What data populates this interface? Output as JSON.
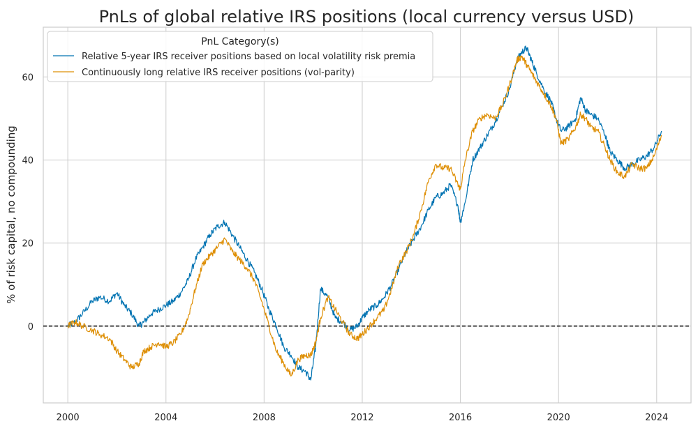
{
  "chart_data": {
    "type": "line",
    "title": "PnLs of global relative IRS positions (local currency versus USD)",
    "xlabel": "",
    "ylabel": "% of risk capital, no compounding",
    "xlim": [
      1999.0,
      2025.4
    ],
    "ylim": [
      -18.5,
      72
    ],
    "xticks": [
      2000,
      2004,
      2008,
      2012,
      2016,
      2020,
      2024
    ],
    "yticks": [
      0,
      20,
      40,
      60
    ],
    "grid": true,
    "reference_line": {
      "y": 0,
      "style": "dashed",
      "color": "#000000"
    },
    "legend": {
      "title": "PnL Category(s)",
      "placement": "top-left"
    },
    "series": [
      {
        "name": "Relative 5-year IRS receiver positions based on local volatility risk premia",
        "color": "#0173b2",
        "x": [
          2000.0,
          2000.3,
          2000.6,
          2001.0,
          2001.3,
          2001.7,
          2002.0,
          2002.3,
          2002.6,
          2002.9,
          2003.1,
          2003.4,
          2003.7,
          2004.0,
          2004.3,
          2004.6,
          2004.9,
          2005.2,
          2005.5,
          2005.8,
          2006.1,
          2006.4,
          2006.7,
          2007.0,
          2007.3,
          2007.6,
          2007.9,
          2008.2,
          2008.5,
          2008.8,
          2009.1,
          2009.4,
          2009.7,
          2009.9,
          2010.1,
          2010.3,
          2010.6,
          2010.9,
          2011.2,
          2011.5,
          2011.8,
          2012.0,
          2012.3,
          2012.6,
          2012.9,
          2013.2,
          2013.5,
          2013.8,
          2014.1,
          2014.4,
          2014.7,
          2015.0,
          2015.3,
          2015.6,
          2015.9,
          2016.0,
          2016.2,
          2016.5,
          2016.8,
          2017.1,
          2017.4,
          2017.7,
          2018.0,
          2018.3,
          2018.5,
          2018.7,
          2018.9,
          2019.1,
          2019.4,
          2019.7,
          2019.9,
          2020.1,
          2020.4,
          2020.7,
          2020.9,
          2021.1,
          2021.3,
          2021.6,
          2021.9,
          2022.1,
          2022.4,
          2022.7,
          2023.0,
          2023.3,
          2023.6,
          2023.9,
          2024.2
        ],
        "y": [
          0,
          1,
          3,
          6,
          7,
          6,
          8,
          5,
          3,
          0,
          1,
          3,
          4,
          5,
          6,
          8,
          11,
          16,
          19,
          22,
          24,
          25,
          22,
          19,
          16,
          13,
          9,
          4,
          0,
          -5,
          -7,
          -10,
          -11,
          -13,
          -5,
          9,
          7,
          2,
          1,
          -1,
          0,
          2,
          4,
          5,
          7,
          10,
          14,
          18,
          21,
          24,
          28,
          31,
          32,
          34,
          29,
          25,
          30,
          40,
          43,
          46,
          49,
          53,
          57,
          64,
          66,
          67,
          64,
          61,
          57,
          54,
          50,
          47,
          48,
          50,
          55,
          52,
          51,
          50,
          46,
          42,
          40,
          38,
          39,
          40,
          41,
          43,
          47
        ]
      },
      {
        "name": "Continuously long relative IRS receiver positions (vol-parity)",
        "color": "#de8f05",
        "x": [
          2000.0,
          2000.3,
          2000.6,
          2001.0,
          2001.3,
          2001.7,
          2002.0,
          2002.3,
          2002.6,
          2002.9,
          2003.1,
          2003.4,
          2003.7,
          2004.0,
          2004.3,
          2004.6,
          2004.9,
          2005.2,
          2005.5,
          2005.8,
          2006.1,
          2006.4,
          2006.7,
          2007.0,
          2007.3,
          2007.6,
          2007.9,
          2008.2,
          2008.5,
          2008.8,
          2009.1,
          2009.4,
          2009.7,
          2009.9,
          2010.1,
          2010.3,
          2010.6,
          2010.9,
          2011.2,
          2011.5,
          2011.8,
          2012.0,
          2012.3,
          2012.6,
          2012.9,
          2013.2,
          2013.5,
          2013.8,
          2014.1,
          2014.4,
          2014.7,
          2015.0,
          2015.3,
          2015.6,
          2015.9,
          2016.0,
          2016.2,
          2016.5,
          2016.8,
          2017.1,
          2017.4,
          2017.7,
          2018.0,
          2018.3,
          2018.5,
          2018.7,
          2018.9,
          2019.1,
          2019.4,
          2019.7,
          2019.9,
          2020.1,
          2020.4,
          2020.7,
          2020.9,
          2021.1,
          2021.3,
          2021.6,
          2021.9,
          2022.1,
          2022.4,
          2022.7,
          2023.0,
          2023.3,
          2023.6,
          2023.9,
          2024.2
        ],
        "y": [
          0,
          1,
          0,
          -1,
          -2,
          -3,
          -6,
          -8,
          -10,
          -9,
          -6,
          -5,
          -4,
          -5,
          -4,
          -2,
          2,
          9,
          15,
          17,
          19,
          21,
          18,
          16,
          14,
          11,
          6,
          0,
          -6,
          -9,
          -12,
          -8,
          -7,
          -7,
          -4,
          2,
          7,
          4,
          1,
          -2,
          -3,
          -2,
          0,
          2,
          4,
          9,
          15,
          18,
          22,
          28,
          35,
          39,
          38,
          38,
          34,
          33,
          40,
          47,
          50,
          51,
          50,
          53,
          58,
          64,
          65,
          63,
          61,
          59,
          56,
          53,
          50,
          44,
          45,
          48,
          51,
          50,
          48,
          47,
          43,
          40,
          37,
          36,
          39,
          38,
          38,
          41,
          46
        ]
      }
    ]
  }
}
